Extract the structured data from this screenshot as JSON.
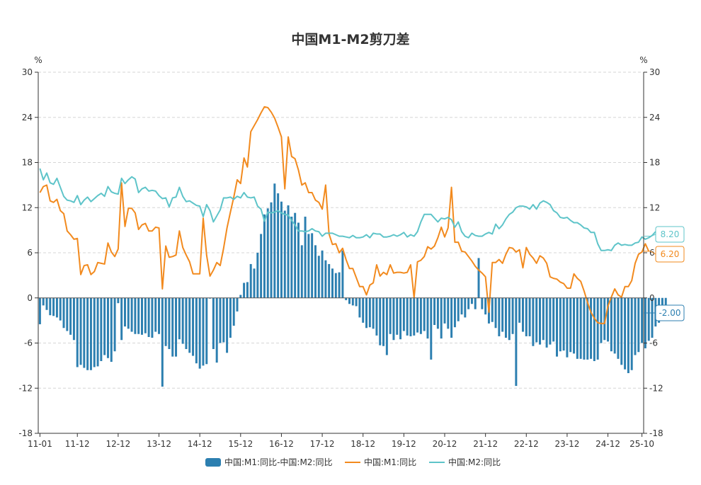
{
  "chart_data": {
    "type": "bar+line",
    "title": "中国M1-M2剪刀差",
    "ylabel_left": "%",
    "ylabel_right": "%",
    "ylim": [
      -18,
      30
    ],
    "yticks": [
      -18,
      -12,
      -6,
      0,
      6,
      12,
      18,
      24,
      30
    ],
    "x_ticklabels": [
      "11-01",
      "11-12",
      "12-12",
      "13-12",
      "14-12",
      "15-12",
      "16-12",
      "17-12",
      "18-12",
      "19-12",
      "20-12",
      "21-12",
      "22-12",
      "23-12",
      "24-12",
      "25-10"
    ],
    "x_start": "2011-01",
    "x_end": "2025-10",
    "grid": true,
    "legend_position": "bottom",
    "series": [
      {
        "name": "中国:M1:同比-中国:M2:同比",
        "type": "bar",
        "color": "#2c7fb0",
        "end_label": "-2.00",
        "values": [
          -3.5,
          -1.0,
          -1.6,
          -2.3,
          -2.4,
          -2.6,
          -3.0,
          -4.0,
          -4.4,
          -4.9,
          -5.6,
          -9.2,
          -8.9,
          -9.3,
          -9.6,
          -9.6,
          -9.2,
          -9.1,
          -8.4,
          -7.6,
          -8.0,
          -8.5,
          -7.1,
          -0.7,
          -5.6,
          -3.8,
          -4.1,
          -4.5,
          -4.8,
          -4.8,
          -4.9,
          -4.7,
          -5.2,
          -5.3,
          -4.5,
          -4.8,
          -11.8,
          -6.4,
          -6.8,
          -7.8,
          -7.8,
          -5.5,
          -6.1,
          -6.8,
          -7.3,
          -7.7,
          -8.7,
          -9.4,
          -9.0,
          -8.8,
          -0.1,
          -6.8,
          -8.6,
          -6.0,
          -5.9,
          -7.3,
          -5.3,
          -3.7,
          -1.8,
          0.4,
          2.0,
          2.1,
          4.5,
          3.9,
          6.0,
          8.5,
          11.1,
          11.9,
          12.7,
          15.2,
          13.9,
          12.8,
          11.6,
          12.3,
          10.8,
          11.3,
          10.0,
          7.0,
          10.8,
          8.5,
          8.6,
          7.0,
          5.6,
          6.3,
          5.0,
          4.5,
          3.9,
          3.3,
          3.4,
          6.3,
          -0.3,
          -0.8,
          -1.0,
          -1.1,
          -2.6,
          -3.3,
          -4.0,
          -3.9,
          -4.1,
          -5.0,
          -6.3,
          -6.4,
          -7.6,
          -4.8,
          -5.6,
          -4.9,
          -5.5,
          -4.4,
          -5.0,
          -5.1,
          -5.0,
          -4.6,
          -4.8,
          -4.4,
          -5.4,
          -8.2,
          -3.6,
          -4.1,
          -5.4,
          -3.4,
          -4.1,
          -5.3,
          -3.9,
          -3.1,
          -2.2,
          -2.6,
          -1.5,
          -0.8,
          -1.5,
          5.3,
          -1.5,
          -2.2,
          -3.4,
          -3.2,
          -4.0,
          -5.1,
          -4.5,
          -5.3,
          -5.6,
          -4.8,
          -11.7,
          -3.3,
          -4.5,
          -5.1,
          -5.1,
          -6.4,
          -5.9,
          -6.2,
          -5.6,
          -6.6,
          -6.2,
          -5.8,
          -7.8,
          -7.1,
          -7.0,
          -7.9,
          -7.2,
          -7.4,
          -8.1,
          -8.1,
          -8.2,
          -8.2,
          -8.1,
          -8.4,
          -8.2,
          -6.0,
          -5.6,
          -5.8,
          -7.1,
          -7.4,
          -8.1,
          -8.9,
          -9.5,
          -10.0,
          -9.6,
          -7.6,
          -7.2,
          -6.0,
          -6.7,
          -5.7,
          -5.3,
          -3.8,
          -3.3,
          -2.8,
          -2.0
        ]
      },
      {
        "name": "中国:M1:同比",
        "type": "line",
        "color": "#f28a1e",
        "end_label": "6.20",
        "values": [
          14.0,
          14.8,
          15.0,
          12.9,
          12.7,
          13.1,
          11.6,
          11.2,
          8.9,
          8.4,
          7.8,
          7.9,
          3.1,
          4.3,
          4.4,
          3.1,
          3.5,
          4.7,
          4.6,
          4.5,
          7.3,
          6.1,
          5.5,
          6.5,
          15.3,
          9.5,
          11.9,
          11.9,
          11.3,
          9.1,
          9.7,
          9.9,
          8.9,
          8.9,
          9.4,
          9.3,
          1.2,
          6.9,
          5.4,
          5.5,
          5.7,
          8.9,
          6.7,
          5.7,
          4.8,
          3.2,
          3.2,
          3.2,
          10.6,
          5.7,
          2.9,
          3.7,
          4.7,
          4.3,
          6.6,
          9.3,
          11.4,
          13.4,
          15.7,
          15.2,
          18.6,
          17.4,
          22.1,
          22.9,
          23.7,
          24.6,
          25.4,
          25.3,
          24.7,
          23.9,
          22.7,
          21.4,
          14.5,
          21.4,
          18.8,
          18.5,
          17.0,
          15.0,
          15.3,
          14.0,
          14.0,
          13.0,
          12.7,
          11.8,
          15.0,
          8.5,
          7.1,
          7.2,
          6.0,
          6.6,
          5.1,
          3.9,
          3.9,
          2.7,
          1.5,
          1.5,
          0.4,
          1.7,
          2.0,
          4.4,
          2.9,
          3.4,
          3.1,
          4.4,
          3.3,
          3.4,
          3.4,
          3.3,
          3.4,
          4.4,
          0.0,
          4.8,
          5.0,
          5.5,
          6.8,
          6.5,
          6.9,
          8.0,
          9.4,
          8.1,
          9.3,
          14.7,
          7.4,
          7.4,
          6.2,
          6.1,
          5.5,
          4.9,
          4.2,
          3.7,
          3.3,
          2.8,
          -1.9,
          4.7,
          4.7,
          5.1,
          4.6,
          5.8,
          6.7,
          6.6,
          6.1,
          6.4,
          4.0,
          6.7,
          5.8,
          5.3,
          4.6,
          5.6,
          5.3,
          4.6,
          2.8,
          2.6,
          2.5,
          2.1,
          1.9,
          1.3,
          1.3,
          3.2,
          2.6,
          2.2,
          0.9,
          -0.6,
          -1.9,
          -2.7,
          -3.3,
          -3.4,
          -3.4,
          -1.1,
          0.1,
          1.2,
          0.4,
          0.1,
          1.5,
          1.5,
          2.3,
          4.6,
          5.8,
          6.1,
          7.2,
          6.2
        ]
      },
      {
        "name": "中国:M2:同比",
        "type": "line",
        "color": "#5ec4c9",
        "end_label": "8.20",
        "values": [
          17.2,
          15.7,
          16.6,
          15.3,
          15.1,
          15.9,
          14.7,
          13.5,
          13.0,
          12.9,
          12.7,
          13.6,
          12.4,
          13.0,
          13.4,
          12.8,
          13.2,
          13.6,
          13.9,
          13.5,
          14.8,
          14.1,
          13.9,
          13.8,
          15.9,
          15.2,
          15.7,
          16.1,
          15.8,
          14.0,
          14.5,
          14.7,
          14.2,
          14.3,
          14.2,
          13.6,
          13.2,
          13.3,
          12.1,
          13.3,
          13.4,
          14.7,
          13.5,
          12.8,
          12.9,
          12.6,
          12.3,
          12.2,
          10.8,
          12.4,
          11.6,
          10.1,
          10.9,
          11.7,
          13.3,
          13.3,
          13.4,
          13.1,
          13.5,
          13.3,
          14.0,
          13.4,
          13.3,
          13.4,
          12.2,
          11.8,
          10.2,
          11.4,
          11.3,
          11.4,
          11.6,
          11.3,
          11.1,
          11.0,
          10.3,
          9.7,
          8.9,
          8.9,
          8.8,
          8.9,
          9.2,
          8.9,
          8.8,
          8.2,
          8.6,
          8.6,
          8.6,
          8.4,
          8.2,
          8.2,
          8.1,
          8.0,
          8.3,
          8.0,
          8.0,
          8.1,
          8.4,
          8.0,
          8.6,
          8.5,
          8.5,
          8.1,
          8.1,
          8.2,
          8.4,
          8.2,
          8.4,
          8.7,
          8.1,
          8.4,
          8.2,
          8.8,
          10.1,
          11.1,
          11.1,
          11.1,
          10.6,
          10.1,
          10.6,
          10.5,
          10.7,
          10.4,
          9.4,
          10.1,
          8.8,
          8.2,
          8.0,
          8.6,
          8.3,
          8.2,
          8.2,
          8.5,
          8.7,
          8.5,
          9.8,
          9.2,
          9.7,
          10.5,
          11.1,
          11.4,
          12.0,
          12.2,
          12.2,
          12.1,
          11.8,
          12.4,
          11.8,
          12.6,
          12.9,
          12.7,
          12.4,
          11.6,
          11.3,
          10.7,
          10.6,
          10.7,
          10.3,
          10.0,
          10.0,
          9.7,
          9.3,
          9.2,
          8.7,
          8.7,
          7.2,
          6.3,
          6.3,
          6.4,
          6.3,
          7.0,
          7.3,
          7.0,
          7.1,
          7.0,
          7.0,
          7.3,
          7.4,
          8.1,
          7.8,
          8.0,
          8.3,
          8.8,
          8.8,
          8.4,
          8.2
        ]
      }
    ]
  }
}
